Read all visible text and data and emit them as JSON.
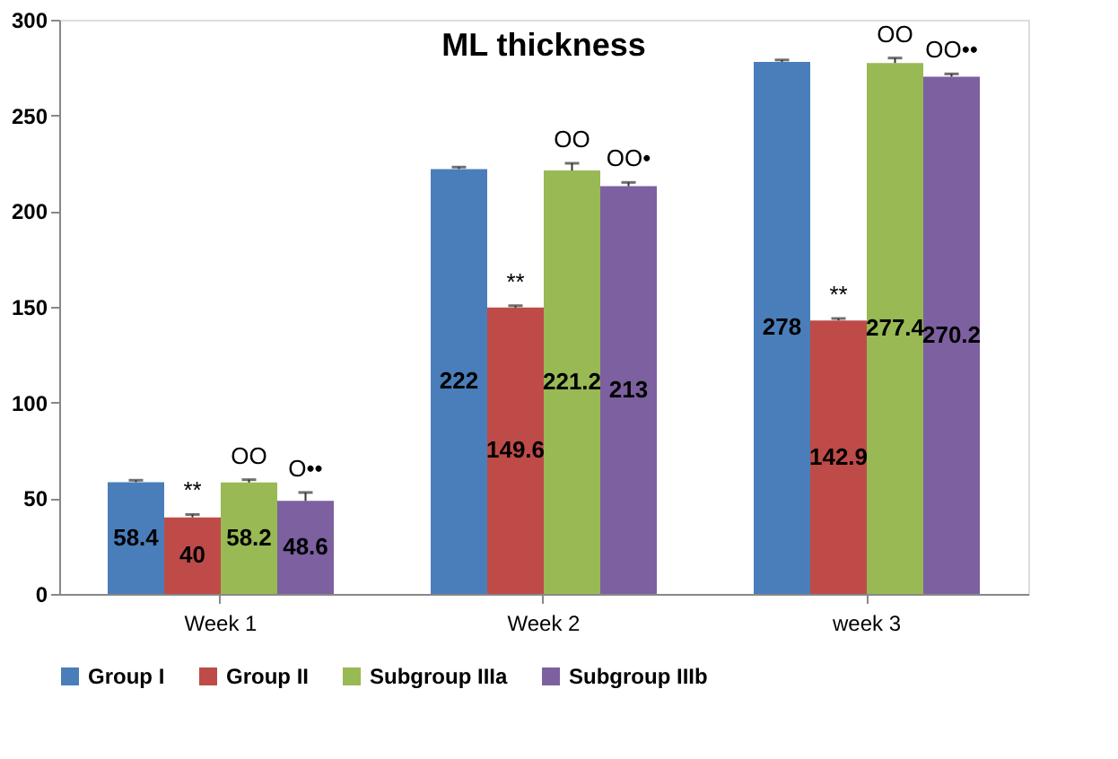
{
  "chart_data": {
    "type": "bar",
    "title": "ML thickness",
    "categories": [
      "Week 1",
      "Week 2",
      "week 3"
    ],
    "series": [
      {
        "name": "Group I",
        "color": "#4a7ebb",
        "values": [
          58.4,
          222,
          278
        ],
        "errors": [
          [
            58.4,
            59.4
          ],
          [
            222,
            223
          ],
          [
            278,
            279
          ]
        ]
      },
      {
        "name": "Group II",
        "color": "#be4b48",
        "values": [
          40,
          149.6,
          142.9
        ],
        "errors": [
          [
            40,
            41.5
          ],
          [
            149.6,
            150.6
          ],
          [
            142.9,
            143.9
          ]
        ]
      },
      {
        "name": "Subgroup IIIa",
        "color": "#98b954",
        "values": [
          58.2,
          221.2,
          277.4
        ],
        "errors": [
          [
            58.2,
            59.7
          ],
          [
            221.2,
            225
          ],
          [
            277.4,
            280
          ]
        ]
      },
      {
        "name": "Subgroup IIIb",
        "color": "#7d60a0",
        "values": [
          48.6,
          213,
          270.2
        ],
        "errors": [
          [
            48.6,
            53
          ],
          [
            213,
            215
          ],
          [
            270.2,
            271.7
          ]
        ]
      }
    ],
    "annotations": [
      "**",
      "OO",
      "O••",
      "**",
      "OO",
      "OO•",
      "**",
      "OO",
      "OO••"
    ],
    "ylim": [
      0,
      300
    ],
    "yticks": [
      0,
      50,
      100,
      150,
      200,
      250,
      300
    ],
    "data_labels": true,
    "legend": "bottom",
    "grid": false
  }
}
